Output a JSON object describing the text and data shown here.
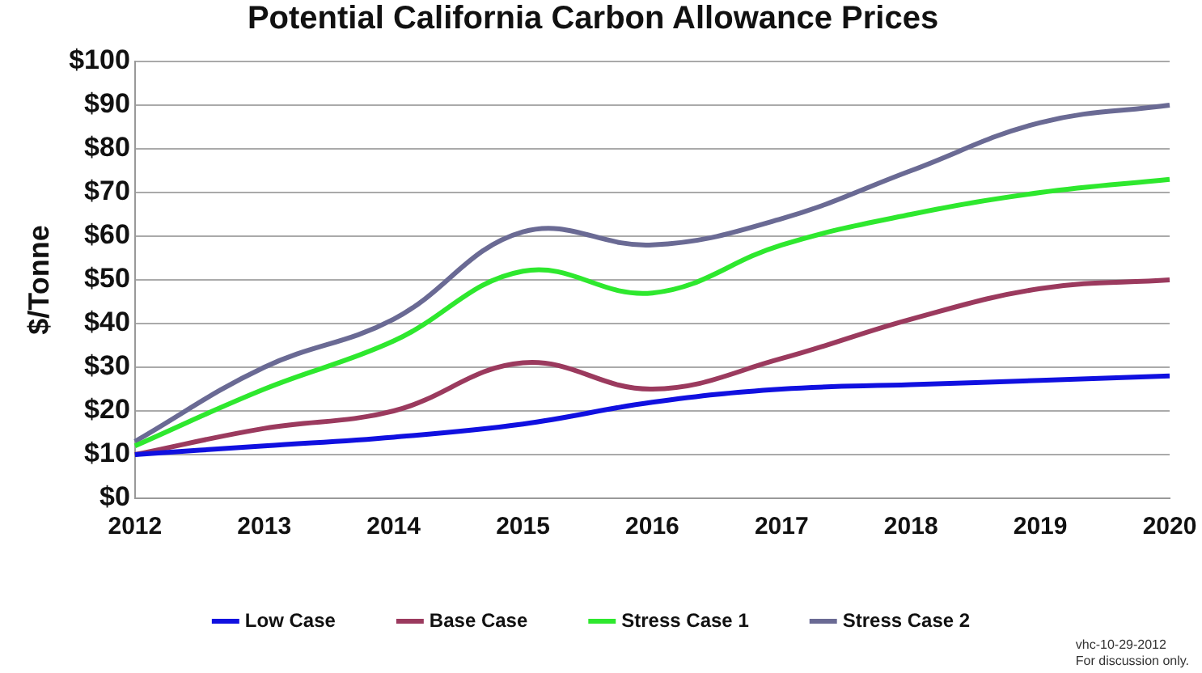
{
  "chart_data": {
    "type": "line",
    "title": "Potential California Carbon Allowance Prices",
    "ylabel": "$/Tonne",
    "categories": [
      "2012",
      "2013",
      "2014",
      "2015",
      "2016",
      "2017",
      "2018",
      "2019",
      "2020"
    ],
    "series": [
      {
        "name": "Low Case",
        "color": "#1010e0",
        "values": [
          10,
          12,
          14,
          17,
          22,
          25,
          26,
          27,
          28
        ]
      },
      {
        "name": "Base Case",
        "color": "#9b3a5e",
        "values": [
          10,
          16,
          20,
          31,
          25,
          32,
          41,
          48,
          50
        ]
      },
      {
        "name": "Stress Case 1",
        "color": "#2ee82e",
        "values": [
          12,
          25,
          36,
          52,
          47,
          58,
          65,
          70,
          73
        ]
      },
      {
        "name": "Stress Case 2",
        "color": "#6a6a94",
        "values": [
          13,
          30,
          41,
          61,
          58,
          64,
          75,
          86,
          90
        ]
      }
    ],
    "ylim": [
      0,
      100
    ],
    "yticks": [
      {
        "value": 0,
        "label": "$0"
      },
      {
        "value": 10,
        "label": "$10"
      },
      {
        "value": 20,
        "label": "$20"
      },
      {
        "value": 30,
        "label": "$30"
      },
      {
        "value": 40,
        "label": "$40"
      },
      {
        "value": 50,
        "label": "$50"
      },
      {
        "value": 60,
        "label": "$60"
      },
      {
        "value": 70,
        "label": "$70"
      },
      {
        "value": 80,
        "label": "$80"
      },
      {
        "value": 90,
        "label": "$90"
      },
      {
        "value": 100,
        "label": "$100"
      }
    ],
    "grid": "y",
    "legend": "bottom",
    "marker": "none",
    "line_style": "solid",
    "annotations": [
      "vhc-10-29-2012",
      "For discussion only."
    ]
  }
}
